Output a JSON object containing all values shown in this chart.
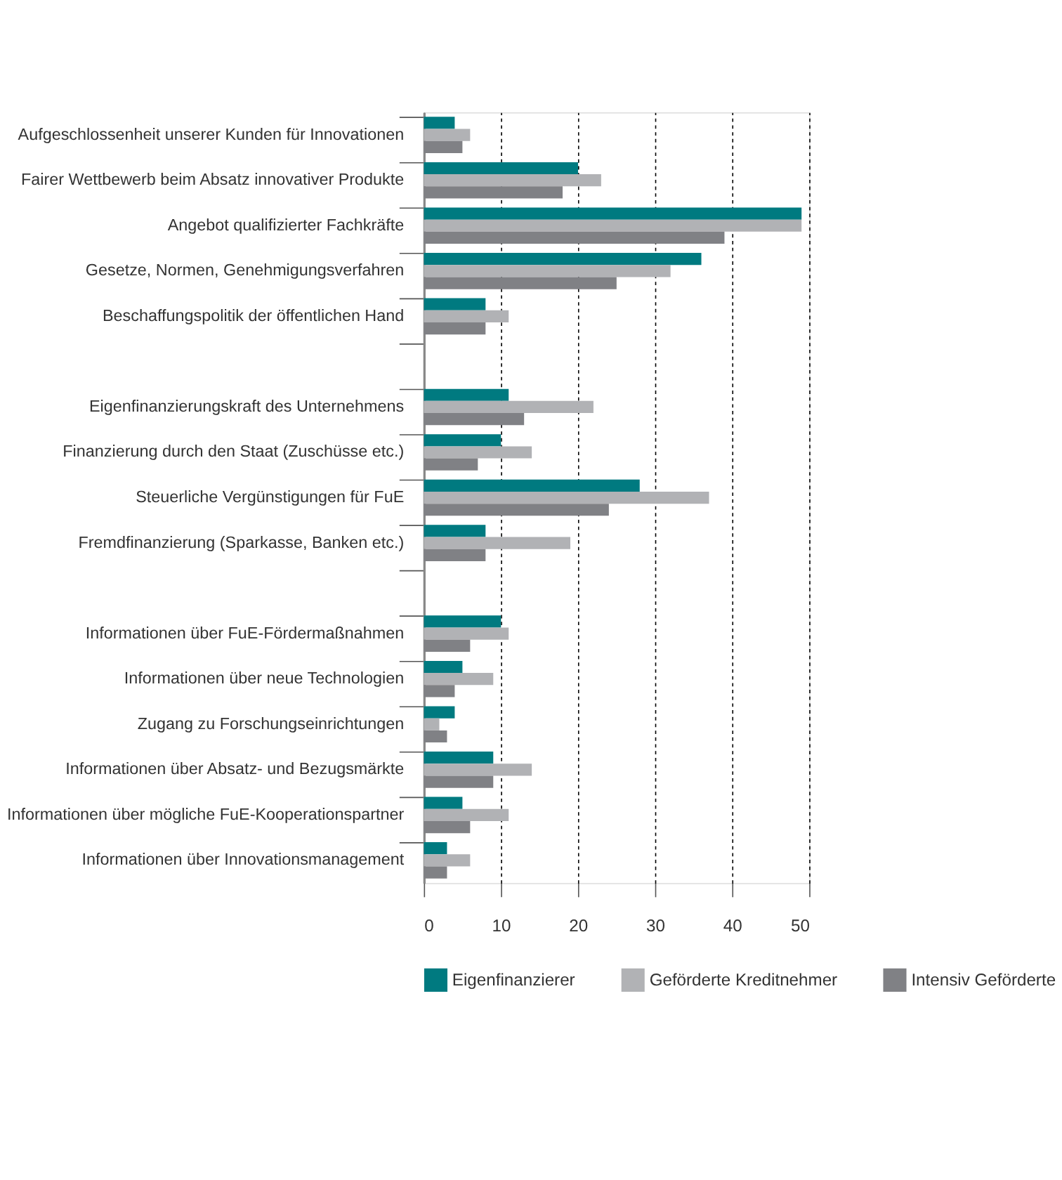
{
  "chart_data": {
    "type": "bar",
    "orientation": "horizontal",
    "categories": [
      "Aufgeschlossenheit unserer Kunden für Innovationen",
      "Fairer Wettbewerb beim Absatz innovativer Produkte",
      "Angebot qualifizierter Fachkräfte",
      "Gesetze, Normen, Genehmigungsverfahren",
      "Beschaffungspolitik der öffentlichen Hand",
      null,
      "Eigenfinanzierungskraft des Unternehmens",
      "Finanzierung durch den Staat (Zuschüsse etc.)",
      "Steuerliche Vergünstigungen für FuE",
      "Fremdfinanzierung (Sparkasse, Banken etc.)",
      null,
      "Informationen über FuE-Fördermaßnahmen",
      "Informationen über neue Technologien",
      "Zugang zu  Forschungseinrichtungen",
      "Informationen über Absatz- und Bezugsmärkte",
      "Informationen über mögliche FuE-Kooperationspartner",
      "Informationen über Innovationsmanagement"
    ],
    "series": [
      {
        "name": "Eigenfinanzierer",
        "color": "#007a80",
        "values": [
          4,
          20,
          49,
          36,
          8,
          null,
          11,
          10,
          28,
          8,
          null,
          10,
          5,
          4,
          9,
          5,
          3
        ]
      },
      {
        "name": "Geförderte Kreditnehmer",
        "color": "#b1b2b5",
        "values": [
          6,
          23,
          49,
          32,
          11,
          null,
          22,
          14,
          37,
          19,
          null,
          11,
          9,
          2,
          14,
          11,
          6
        ]
      },
      {
        "name": "Intensiv Geförderte",
        "color": "#808185",
        "values": [
          5,
          18,
          39,
          25,
          8,
          null,
          13,
          7,
          24,
          8,
          null,
          6,
          4,
          3,
          9,
          6,
          3
        ]
      }
    ],
    "xlim": [
      0,
      50
    ],
    "xticks": [
      0,
      10,
      20,
      30,
      40,
      50
    ],
    "grid": "x",
    "legend": "bottom"
  }
}
